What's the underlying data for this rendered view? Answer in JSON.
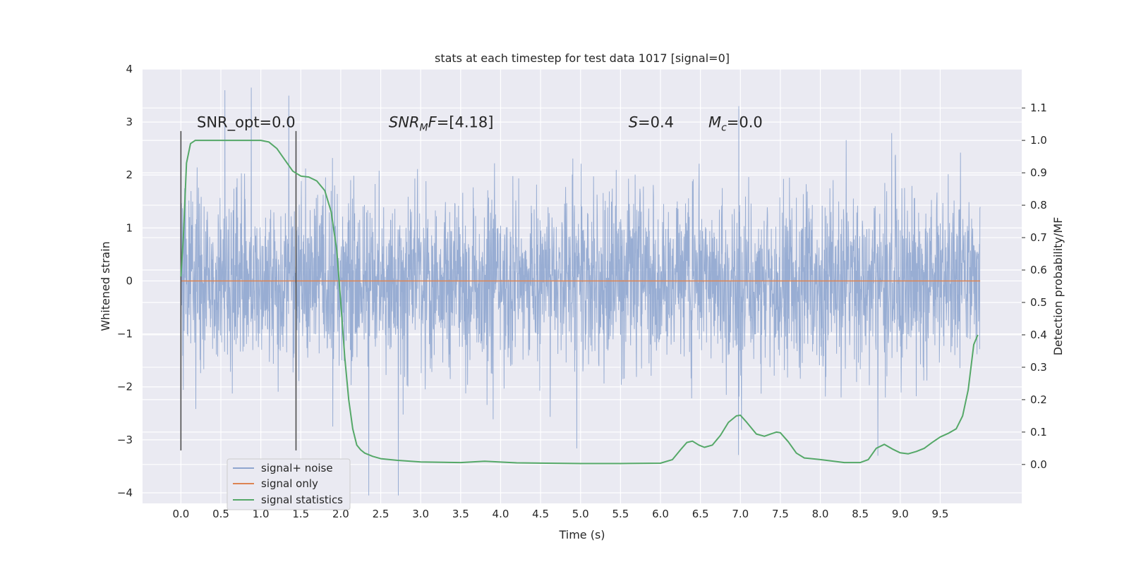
{
  "chart_data": {
    "type": "line",
    "title": "stats at each timestep for test data 1017 [signal=0]",
    "xlabel": "Time (s)",
    "ylabel": "Whitened strain",
    "y2label": "Detection probability/MF",
    "xlim": [
      -0.48,
      10.52
    ],
    "ylim": [
      -4.2,
      4.0
    ],
    "y2lim": [
      -0.12,
      1.22
    ],
    "x_ticks": [
      "0.0",
      "0.5",
      "1.0",
      "1.5",
      "2.0",
      "2.5",
      "3.0",
      "3.5",
      "4.0",
      "4.5",
      "5.0",
      "5.5",
      "6.0",
      "6.5",
      "7.0",
      "7.5",
      "8.0",
      "8.5",
      "9.0",
      "9.5"
    ],
    "y_ticks": [
      "4",
      "3",
      "2",
      "1",
      "0",
      "−1",
      "−2",
      "−3",
      "−4"
    ],
    "y2_ticks": [
      "1.1",
      "1.0",
      "0.9",
      "0.8",
      "0.7",
      "0.6",
      "0.5",
      "0.4",
      "0.3",
      "0.2",
      "0.1",
      "0.0"
    ],
    "grid": true,
    "legend_position": "lower-left",
    "colors": {
      "plot_background": "#eaeaf2",
      "grid": "#ffffff",
      "noise": "#8fa6cf",
      "signal_only": "#dd8452",
      "statistics": "#55a868",
      "marker_lines": "#4d4d4d"
    },
    "series": [
      {
        "name": "signal+ noise",
        "axis": "left",
        "x_range": [
          0.0,
          10.0
        ],
        "approx_band": [
          -1.4,
          1.4
        ],
        "extremes": [
          {
            "x": 0.55,
            "y": 3.6
          },
          {
            "x": 0.88,
            "y": 3.65
          },
          {
            "x": 1.35,
            "y": 3.5
          },
          {
            "x": 2.35,
            "y": -4.05
          },
          {
            "x": 2.72,
            "y": -4.05
          },
          {
            "x": 6.98,
            "y": 3.3
          },
          {
            "x": 8.72,
            "y": -3.3
          }
        ]
      },
      {
        "name": "signal only",
        "axis": "left",
        "x": [
          0.0,
          10.0
        ],
        "y": [
          0.0,
          0.0
        ]
      },
      {
        "name": "signal statistics",
        "axis": "right",
        "x": [
          0.0,
          0.03,
          0.07,
          0.12,
          0.18,
          0.3,
          0.5,
          0.8,
          1.0,
          1.1,
          1.2,
          1.3,
          1.4,
          1.5,
          1.6,
          1.7,
          1.8,
          1.88,
          1.95,
          2.0,
          2.05,
          2.1,
          2.15,
          2.2,
          2.25,
          2.3,
          2.4,
          2.5,
          2.7,
          3.0,
          3.5,
          3.8,
          4.2,
          5.0,
          5.5,
          6.0,
          6.15,
          6.25,
          6.33,
          6.4,
          6.48,
          6.55,
          6.65,
          6.75,
          6.85,
          6.95,
          7.0,
          7.08,
          7.2,
          7.3,
          7.38,
          7.45,
          7.5,
          7.6,
          7.7,
          7.8,
          8.0,
          8.3,
          8.5,
          8.6,
          8.7,
          8.8,
          8.9,
          9.0,
          9.1,
          9.2,
          9.3,
          9.4,
          9.5,
          9.6,
          9.7,
          9.78,
          9.85,
          9.92,
          9.97
        ],
        "y": [
          0.58,
          0.7,
          0.93,
          0.99,
          1.0,
          1.0,
          1.0,
          1.0,
          1.0,
          0.995,
          0.975,
          0.94,
          0.905,
          0.89,
          0.887,
          0.875,
          0.845,
          0.78,
          0.66,
          0.5,
          0.33,
          0.2,
          0.11,
          0.06,
          0.045,
          0.035,
          0.025,
          0.018,
          0.013,
          0.008,
          0.006,
          0.01,
          0.005,
          0.003,
          0.003,
          0.004,
          0.015,
          0.045,
          0.068,
          0.072,
          0.06,
          0.053,
          0.06,
          0.09,
          0.13,
          0.15,
          0.152,
          0.13,
          0.094,
          0.087,
          0.094,
          0.1,
          0.098,
          0.07,
          0.035,
          0.02,
          0.015,
          0.006,
          0.006,
          0.015,
          0.05,
          0.062,
          0.048,
          0.036,
          0.033,
          0.04,
          0.05,
          0.068,
          0.085,
          0.096,
          0.11,
          0.15,
          0.23,
          0.37,
          0.4
        ]
      }
    ],
    "vertical_markers": [
      0.0,
      1.44
    ],
    "annotations": [
      {
        "text": "SNR_opt=0.0",
        "x": 0.2,
        "y": 2.9
      },
      {
        "base": "SNR",
        "sub": "M",
        "rest": "F=[4.18]",
        "x": 2.6,
        "y": 2.9
      },
      {
        "base": "S",
        "sub": "",
        "rest": "=0.4",
        "x": 5.6,
        "y": 2.9
      },
      {
        "base": "M",
        "sub": "c",
        "rest": "=0.0",
        "x": 6.6,
        "y": 2.9
      }
    ]
  }
}
